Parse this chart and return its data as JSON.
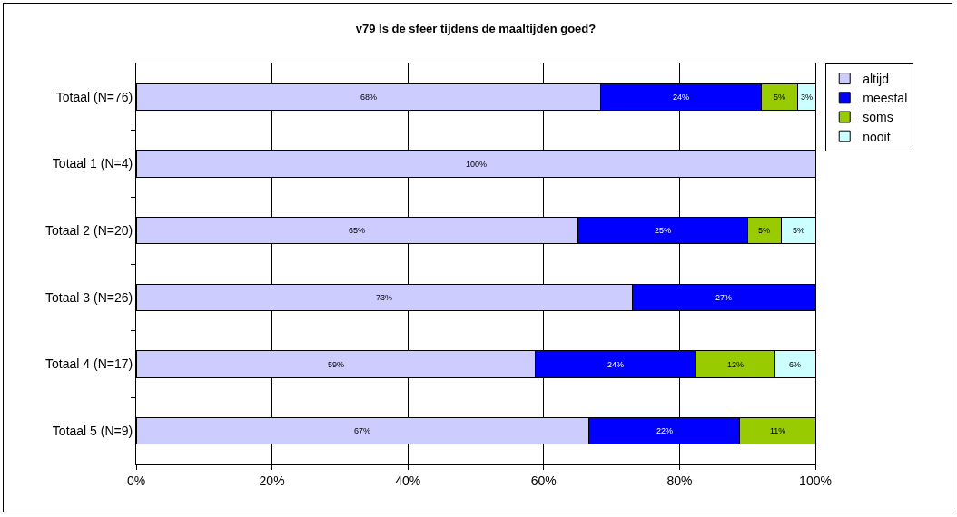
{
  "chart_data": {
    "type": "bar",
    "orientation": "horizontal",
    "stacked": true,
    "title": "v79 Is de sfeer tijdens de maaltijden goed?",
    "categories": [
      "Totaal (N=76)",
      "Totaal 1 (N=4)",
      "Totaal 2 (N=20)",
      "Totaal 3 (N=26)",
      "Totaal 4 (N=17)",
      "Totaal 5 (N=9)"
    ],
    "series": [
      {
        "name": "altijd",
        "color": "#ccccff",
        "values": [
          68.4,
          100,
          65,
          73.1,
          58.8,
          66.7
        ],
        "value_labels": [
          "68%",
          "100%",
          "65%",
          "73%",
          "59%",
          "67%"
        ]
      },
      {
        "name": "meestal",
        "color": "#0000ff",
        "values": [
          23.7,
          null,
          25,
          26.9,
          23.5,
          22.2
        ],
        "value_labels": [
          "24%",
          null,
          "25%",
          "27%",
          "24%",
          "22%"
        ]
      },
      {
        "name": "soms",
        "color": "#99cc00",
        "values": [
          5.3,
          null,
          5,
          null,
          11.8,
          11.1
        ],
        "value_labels": [
          "5%",
          null,
          "5%",
          null,
          "12%",
          "11%"
        ]
      },
      {
        "name": "nooit",
        "color": "#ccffff",
        "values": [
          2.6,
          null,
          5,
          null,
          5.9,
          null
        ],
        "value_labels": [
          "3%",
          null,
          "5%",
          null,
          "6%",
          null
        ]
      }
    ],
    "xlim": [
      0,
      100
    ],
    "xticks": [
      {
        "value": 0,
        "label": "0%"
      },
      {
        "value": 20,
        "label": "20%"
      },
      {
        "value": 40,
        "label": "40%"
      },
      {
        "value": 60,
        "label": "60%"
      },
      {
        "value": 80,
        "label": "80%"
      },
      {
        "value": 100,
        "label": "100%"
      }
    ],
    "grid": "x",
    "legend": "top right"
  }
}
